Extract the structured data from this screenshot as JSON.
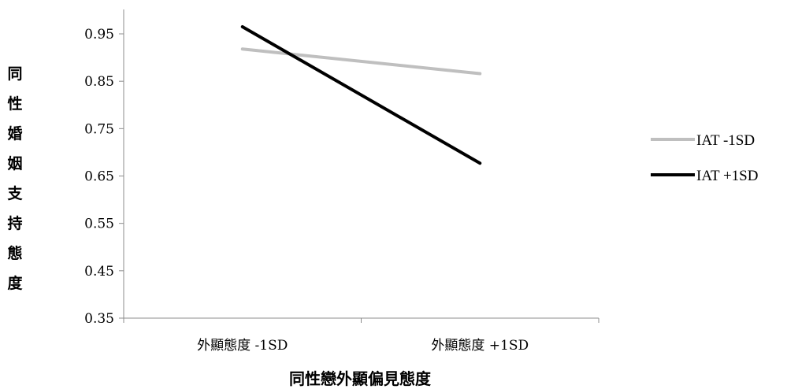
{
  "chart_data": {
    "type": "line",
    "categories": [
      "外顯態度 -1SD",
      "外顯態度 +1SD"
    ],
    "series": [
      {
        "name": "IAT -1SD",
        "values": [
          0.918,
          0.866
        ],
        "color": "#bfbfbf"
      },
      {
        "name": "IAT +1SD",
        "values": [
          0.965,
          0.677
        ],
        "color": "#000000"
      }
    ],
    "xlabel": "同性戀外顯偏見態度",
    "ylabel": "同性婚姻支持態度",
    "ylim": [
      0.35,
      0.95
    ],
    "yticks": [
      "0.95",
      "0.85",
      "0.75",
      "0.65",
      "0.55",
      "0.45",
      "0.35"
    ],
    "ytick_values": [
      0.95,
      0.85,
      0.75,
      0.65,
      0.55,
      0.45,
      0.35
    ],
    "legend_position": "right",
    "grid": false
  }
}
